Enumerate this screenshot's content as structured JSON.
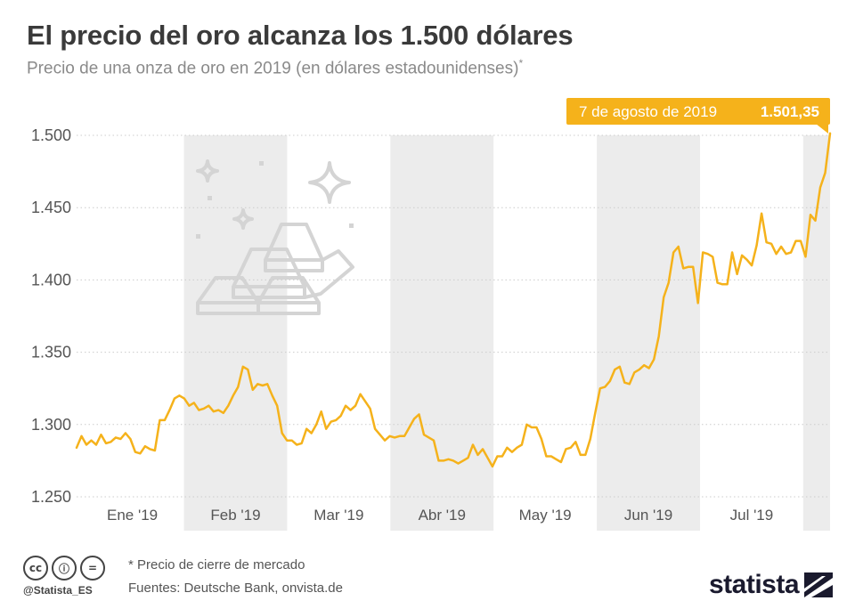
{
  "title": "El precio del oro alcanza los 1.500 dólares",
  "subtitle": "Precio de una onza de oro en 2019 (en dólares estadounidenses)",
  "subtitle_mark": "*",
  "footnote": "* Precio de cierre de mercado",
  "source": "Fuentes: Deutsche Bank, onvista.de",
  "handle": "@Statista_ES",
  "brand": "statista",
  "license_icons": [
    "cc",
    "ⓘ",
    "="
  ],
  "colors": {
    "line": "#f5b21b",
    "band": "#ececec",
    "grid": "#cccccc",
    "callout": "#f5b21b"
  },
  "chart_data": {
    "type": "line",
    "ylim": [
      1250,
      1500
    ],
    "yticks": [
      "1.500",
      "1.450",
      "1.400",
      "1.350",
      "1.300",
      "1.250"
    ],
    "ytick_values": [
      1500,
      1450,
      1400,
      1350,
      1300,
      1250
    ],
    "months": [
      "Ene  '19",
      "Feb '19",
      "Mar '19",
      "Abr '19",
      "May '19",
      "Jun '19",
      "Jul '19"
    ],
    "grid": true,
    "callout": {
      "date": "7 de agosto de 2019",
      "value": "1.501,35"
    },
    "values": [
      1284,
      1292,
      1286,
      1289,
      1286,
      1293,
      1287,
      1288,
      1291,
      1290,
      1294,
      1290,
      1281,
      1280,
      1285,
      1283,
      1282,
      1303,
      1303,
      1310,
      1318,
      1320,
      1318,
      1313,
      1315,
      1310,
      1311,
      1313,
      1309,
      1310,
      1308,
      1313,
      1320,
      1326,
      1340,
      1338,
      1324,
      1328,
      1327,
      1328,
      1320,
      1313,
      1294,
      1289,
      1289,
      1286,
      1287,
      1297,
      1294,
      1300,
      1309,
      1297,
      1302,
      1303,
      1306,
      1313,
      1310,
      1313,
      1321,
      1316,
      1311,
      1297,
      1293,
      1289,
      1292,
      1291,
      1292,
      1292,
      1298,
      1304,
      1307,
      1293,
      1291,
      1289,
      1275,
      1275,
      1276,
      1275,
      1273,
      1275,
      1277,
      1286,
      1279,
      1283,
      1277,
      1271,
      1278,
      1278,
      1284,
      1281,
      1284,
      1286,
      1300,
      1298,
      1298,
      1290,
      1278,
      1278,
      1276,
      1274,
      1283,
      1284,
      1288,
      1279,
      1279,
      1290,
      1308,
      1325,
      1326,
      1330,
      1338,
      1340,
      1329,
      1328,
      1336,
      1338,
      1341,
      1339,
      1345,
      1361,
      1388,
      1398,
      1419,
      1423,
      1408,
      1409,
      1409,
      1384,
      1419,
      1418,
      1416,
      1398,
      1397,
      1397,
      1419,
      1404,
      1417,
      1414,
      1410,
      1424,
      1446,
      1426,
      1425,
      1418,
      1423,
      1418,
      1419,
      1427,
      1427,
      1416,
      1445,
      1441,
      1464,
      1474,
      1501.35
    ]
  }
}
